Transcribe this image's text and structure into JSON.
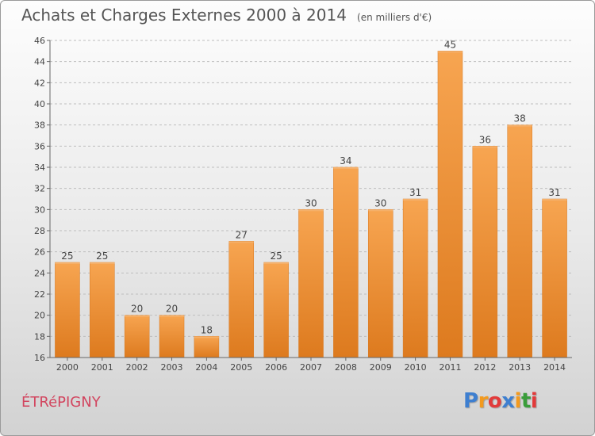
{
  "chart_data": {
    "type": "bar",
    "title": "Achats et Charges Externes 2000 à 2014",
    "subtitle": "(en milliers d'€)",
    "categories": [
      "2000",
      "2001",
      "2002",
      "2003",
      "2004",
      "2005",
      "2006",
      "2007",
      "2008",
      "2009",
      "2010",
      "2011",
      "2012",
      "2013",
      "2014"
    ],
    "values": [
      25,
      25,
      20,
      20,
      18,
      27,
      25,
      30,
      34,
      30,
      31,
      45,
      36,
      38,
      31
    ],
    "ylim": [
      16,
      46
    ],
    "yticks": [
      16,
      18,
      20,
      22,
      24,
      26,
      28,
      30,
      32,
      34,
      36,
      38,
      40,
      42,
      44,
      46
    ],
    "grid": true,
    "bar_color": "#ef8a2a"
  },
  "footer": {
    "commune": "ÉTRéPIGNY",
    "logo_letters": [
      "P",
      "r",
      "o",
      "x",
      "i",
      "t",
      "i"
    ],
    "logo_colors": [
      "#3e7fd0",
      "#f39a1e",
      "#e23a3a",
      "#3e7fd0",
      "#f39a1e",
      "#3a9d3a",
      "#e23a3a"
    ]
  }
}
